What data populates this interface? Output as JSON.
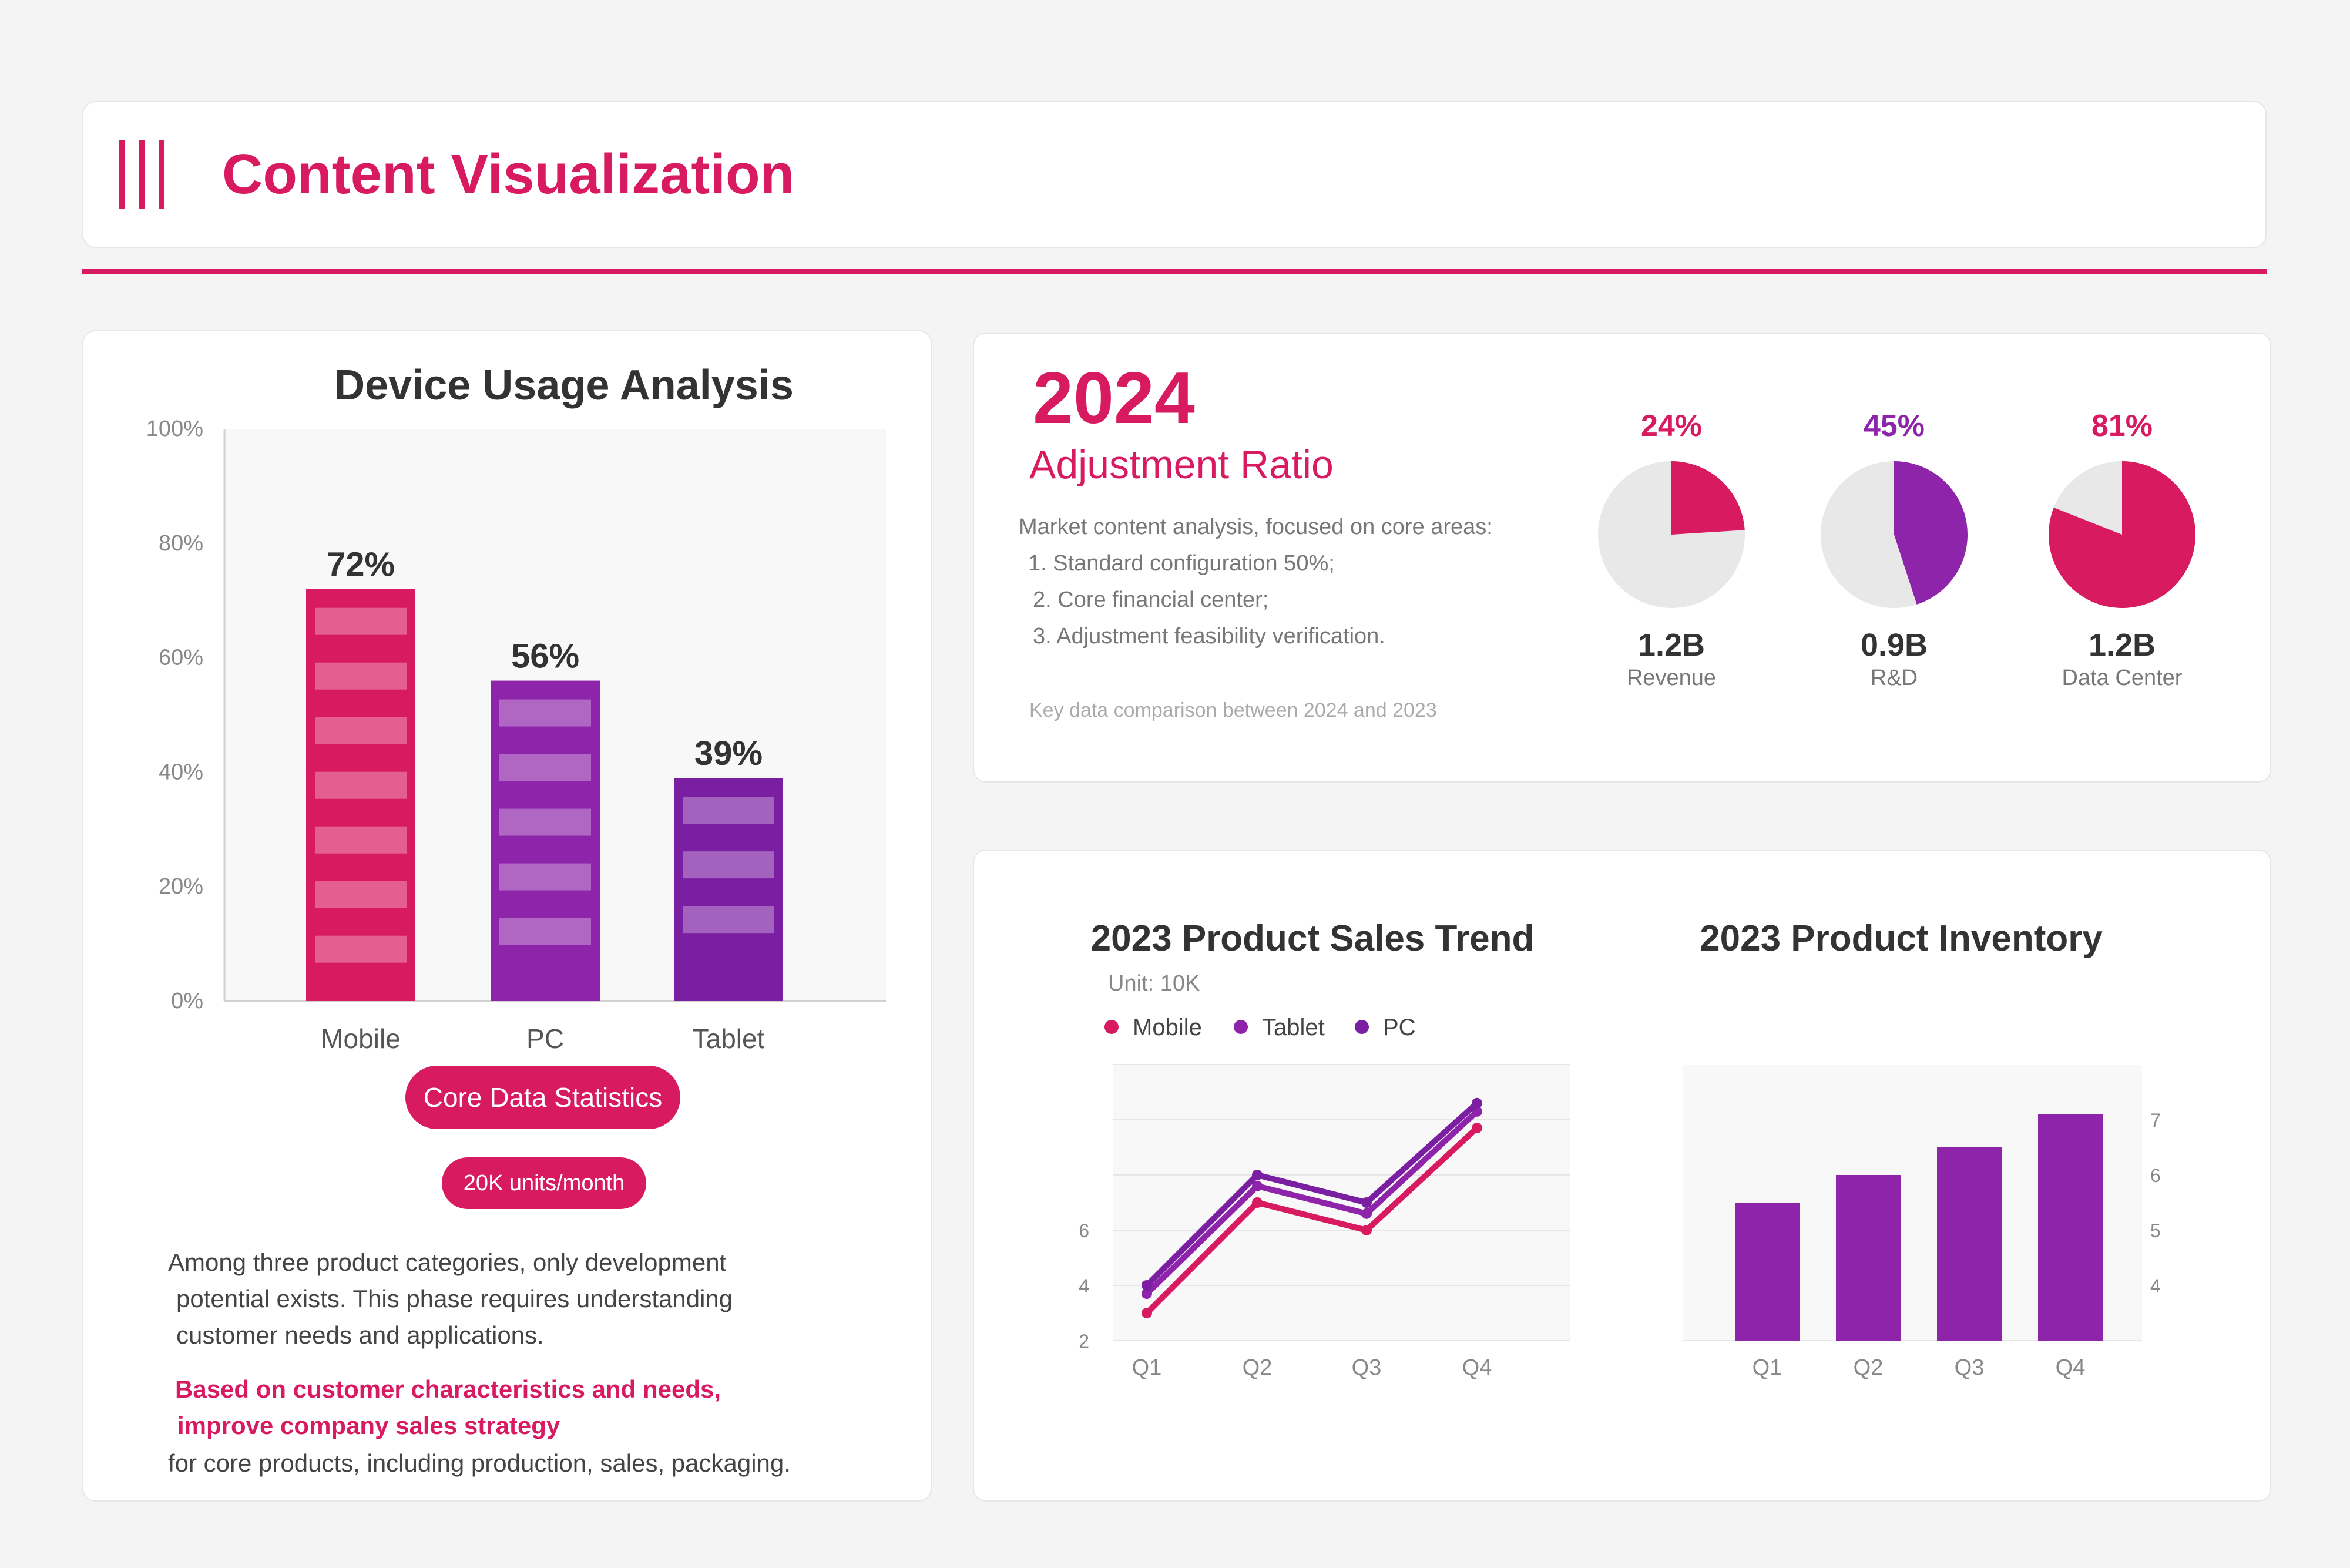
{
  "header": {
    "title": "Content Visualization",
    "icon": "three-vertical-bars-icon",
    "accent_color": "#d81b60"
  },
  "colors": {
    "pink": "#d81b60",
    "purple": "#8e24aa",
    "violet": "#7b1fa2",
    "pie_bg": "#e8e8e8"
  },
  "device_panel": {
    "core_label": "Core Data Statistics",
    "units_label": "20K units/month",
    "description": [
      "Among three product categories, only development",
      "potential exists. This phase requires understanding",
      "customer needs and applications."
    ],
    "highlight": [
      "Based on customer characteristics and needs,",
      "improve company sales strategy"
    ],
    "footer": "for core products, including production, sales, packaging."
  },
  "ratio_panel": {
    "year": "2024",
    "subtitle": "Adjustment Ratio",
    "market_lines": [
      "Market content analysis, focused on core areas:",
      "1. Standard configuration 50%;",
      "2. Core financial center;",
      "3. Adjustment feasibility verification."
    ],
    "key_note": "Key data comparison between 2024 and 2023"
  },
  "chart_data": [
    {
      "type": "bar",
      "title": "Device Usage Analysis",
      "categories": [
        "Mobile",
        "PC",
        "Tablet"
      ],
      "values": [
        72,
        56,
        39
      ],
      "data_labels": [
        "72%",
        "56%",
        "39%"
      ],
      "colors": [
        "#d81b60",
        "#8e24aa",
        "#7b1fa2"
      ],
      "ylim": [
        0,
        100
      ],
      "y_ticks": [
        "0%",
        "20%",
        "40%",
        "60%",
        "80%",
        "100%"
      ],
      "grid": false
    },
    {
      "type": "pie",
      "slices": [
        {
          "percent_label": "24%",
          "percent": 24,
          "value_label": "1.2B",
          "label": "Revenue",
          "color": "#d81b60"
        },
        {
          "percent_label": "45%",
          "percent": 45,
          "value_label": "0.9B",
          "label": "R&D",
          "color": "#8e24aa"
        },
        {
          "percent_label": "81%",
          "percent": 81,
          "value_label": "1.2B",
          "label": "Data Center",
          "color": "#d81b60"
        }
      ]
    },
    {
      "type": "line",
      "title": "2023 Product Sales Trend",
      "subtitle": "Unit: 10K",
      "categories": [
        "Q1",
        "Q2",
        "Q3",
        "Q4"
      ],
      "series": [
        {
          "name": "Mobile",
          "values": [
            3,
            7,
            6,
            9.7
          ],
          "color": "#d81b60"
        },
        {
          "name": "Tablet",
          "values": [
            3.7,
            7.6,
            6.6,
            10.3
          ],
          "color": "#8e24aa"
        },
        {
          "name": "PC",
          "values": [
            4,
            8,
            7,
            10.6
          ],
          "color": "#7b1fa2"
        }
      ],
      "ylim": [
        2,
        12
      ],
      "y_ticks": [
        "2",
        "4",
        "6"
      ],
      "legend": "top-left",
      "grid": true
    },
    {
      "type": "bar",
      "title": "2023 Product Inventory",
      "categories": [
        "Q1",
        "Q2",
        "Q3",
        "Q4"
      ],
      "values": [
        5.5,
        6,
        6.5,
        7.1
      ],
      "color": "#8e24aa",
      "ylim": [
        3,
        8
      ],
      "y_ticks": [
        "4",
        "5",
        "6",
        "7"
      ],
      "y_axis_side": "right",
      "grid": true
    }
  ]
}
